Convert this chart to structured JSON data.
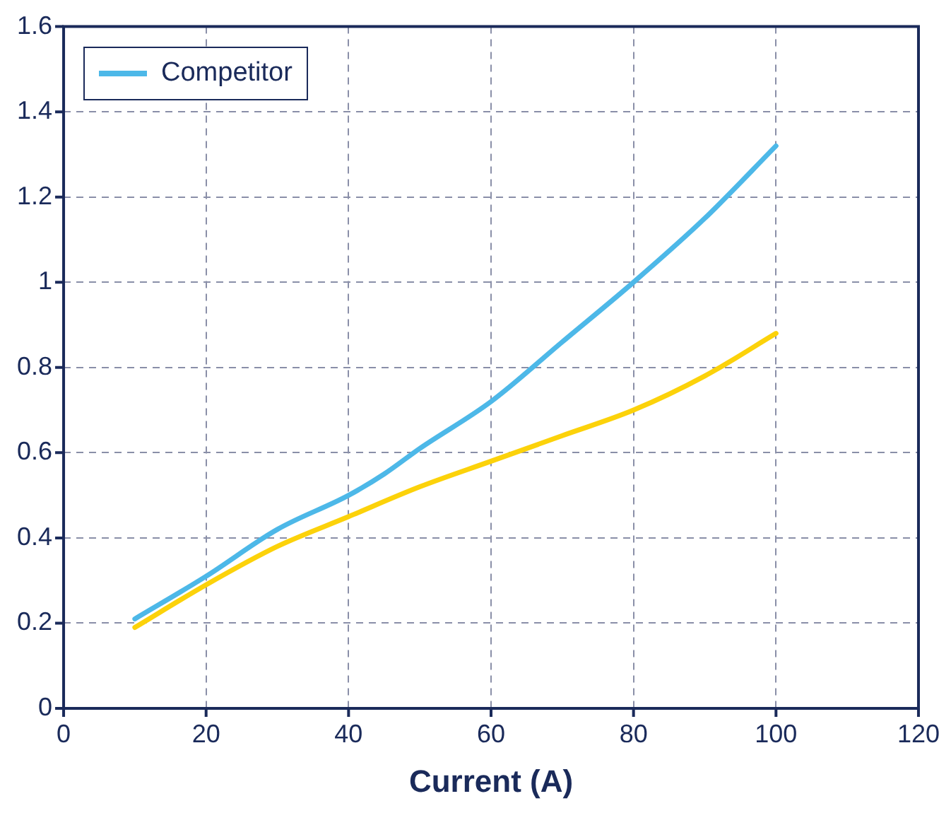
{
  "chart_data": {
    "type": "line",
    "xlabel": "Current (A)",
    "xlim": [
      0,
      120
    ],
    "xticks": [
      0,
      20,
      40,
      60,
      80,
      100,
      120
    ],
    "ylim": [
      0,
      1.6
    ],
    "yticks": [
      0,
      {
        "value": 0.2,
        "label": "0.2"
      },
      {
        "value": 0.4,
        "label": "0.4"
      },
      {
        "value": 0.6,
        "label": "0.6"
      },
      {
        "value": 0.8,
        "label": "0.8"
      },
      1,
      {
        "value": 1.2,
        "label": "1.2"
      },
      {
        "value": 1.4,
        "label": "1.4"
      },
      {
        "value": 1.6,
        "label": "1.6"
      }
    ],
    "grid": true,
    "legend": "top left",
    "line_style": "solid",
    "marker": "none",
    "series": [
      {
        "name": "Competitor",
        "color": "#4db8e8",
        "x": [
          10,
          20,
          30,
          40,
          45,
          50,
          60,
          70,
          80,
          90,
          100
        ],
        "values": [
          0.21,
          0.31,
          0.42,
          0.5,
          0.55,
          0.61,
          0.72,
          0.86,
          1.0,
          1.15,
          1.32
        ]
      },
      {
        "color": "#fcd20a",
        "x": [
          10,
          20,
          30,
          40,
          50,
          60,
          70,
          80,
          90,
          100
        ],
        "values": [
          0.19,
          0.29,
          0.38,
          0.45,
          0.52,
          0.58,
          0.64,
          0.7,
          0.78,
          0.88
        ]
      }
    ]
  }
}
